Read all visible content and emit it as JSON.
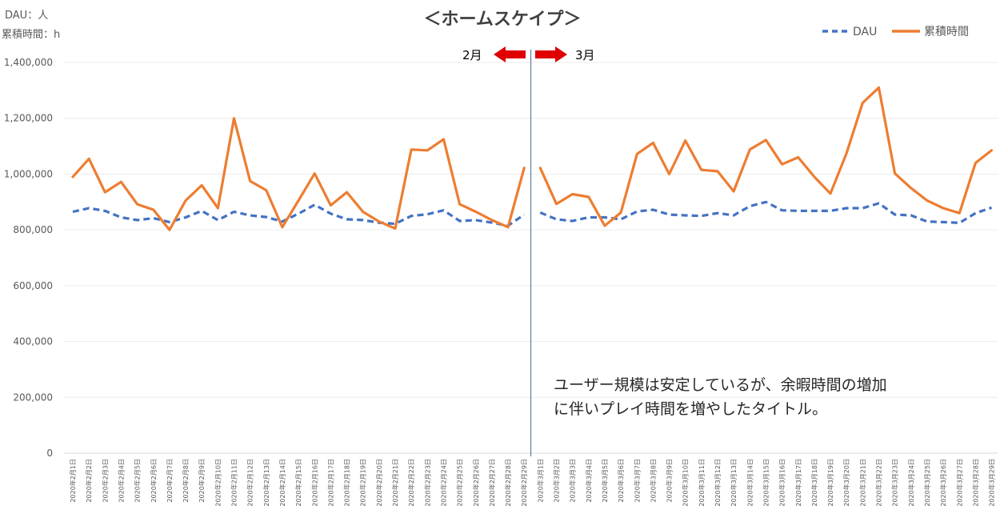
{
  "units": [
    "DAU：人",
    "累積時間：h"
  ],
  "chart_data": {
    "type": "line",
    "title": "＜ホームスケイプ＞",
    "ylim": [
      0,
      1400000
    ],
    "yticks": [
      0,
      200000,
      400000,
      600000,
      800000,
      1000000,
      1200000,
      1400000
    ],
    "ytick_labels": [
      "0",
      "200,000",
      "400,000",
      "600,000",
      "800,000",
      "1,000,000",
      "1,200,000",
      "1,400,000"
    ],
    "grid": true,
    "legend_position": "top-right",
    "x": [
      "2020年2月1日",
      "2020年2月2日",
      "2020年2月3日",
      "2020年2月4日",
      "2020年2月5日",
      "2020年2月6日",
      "2020年2月7日",
      "2020年2月8日",
      "2020年2月9日",
      "2020年2月10日",
      "2020年2月11日",
      "2020年2月12日",
      "2020年2月13日",
      "2020年2月14日",
      "2020年2月15日",
      "2020年2月16日",
      "2020年2月17日",
      "2020年2月18日",
      "2020年2月19日",
      "2020年2月20日",
      "2020年2月21日",
      "2020年2月22日",
      "2020年2月23日",
      "2020年2月24日",
      "2020年2月25日",
      "2020年2月26日",
      "2020年2月27日",
      "2020年2月28日",
      "2020年2月29日",
      "2020年3月1日",
      "2020年3月2日",
      "2020年3月3日",
      "2020年3月4日",
      "2020年3月5日",
      "2020年3月6日",
      "2020年3月7日",
      "2020年3月8日",
      "2020年3月9日",
      "2020年3月10日",
      "2020年3月11日",
      "2020年3月12日",
      "2020年3月13日",
      "2020年3月14日",
      "2020年3月15日",
      "2020年3月16日",
      "2020年3月17日",
      "2020年3月18日",
      "2020年3月19日",
      "2020年3月20日",
      "2020年3月21日",
      "2020年3月22日",
      "2020年3月23日",
      "2020年3月24日",
      "2020年3月25日",
      "2020年3月26日",
      "2020年3月27日",
      "2020年3月28日",
      "2020年3月29日"
    ],
    "series": [
      {
        "name": "DAU",
        "style": "dashed",
        "color": "#4472C4",
        "segments": [
          [
            865000,
            878000,
            868000,
            845000,
            835000,
            842000,
            828000,
            845000,
            868000,
            835000,
            865000,
            852000,
            846000,
            830000,
            858000,
            890000,
            858000,
            838000,
            835000,
            826000,
            822000,
            850000,
            856000,
            870000,
            832000,
            835000,
            826000,
            815000,
            855000
          ],
          [
            862000,
            838000,
            832000,
            845000,
            845000,
            838000,
            866000,
            872000,
            855000,
            852000,
            850000,
            860000,
            852000,
            885000,
            900000,
            870000,
            868000,
            868000,
            868000,
            878000,
            878000,
            895000,
            855000,
            852000,
            830000,
            828000,
            825000,
            860000,
            880000
          ]
        ]
      },
      {
        "name": "累積時間",
        "style": "solid",
        "color": "#ED7D31",
        "segments": [
          [
            990000,
            1055000,
            935000,
            972000,
            892000,
            872000,
            800000,
            905000,
            960000,
            878000,
            1200000,
            975000,
            942000,
            810000,
            905000,
            1002000,
            888000,
            935000,
            865000,
            830000,
            805000,
            1088000,
            1085000,
            1125000,
            892000,
            865000,
            835000,
            810000,
            1022000
          ],
          [
            1022000,
            893000,
            928000,
            918000,
            815000,
            862000,
            1072000,
            1112000,
            1000000,
            1120000,
            1015000,
            1010000,
            938000,
            1088000,
            1122000,
            1035000,
            1060000,
            990000,
            930000,
            1075000,
            1255000,
            1310000,
            1002000,
            950000,
            905000,
            878000,
            860000,
            1040000,
            1085000
          ]
        ]
      }
    ],
    "annotations": {
      "feb_label": "2月",
      "mar_label": "3月",
      "comment_lines": [
        "ユーザー規模は安定しているが、余暇時間の増加",
        "に伴いプレイ時間を増やしたタイトル。"
      ]
    }
  }
}
